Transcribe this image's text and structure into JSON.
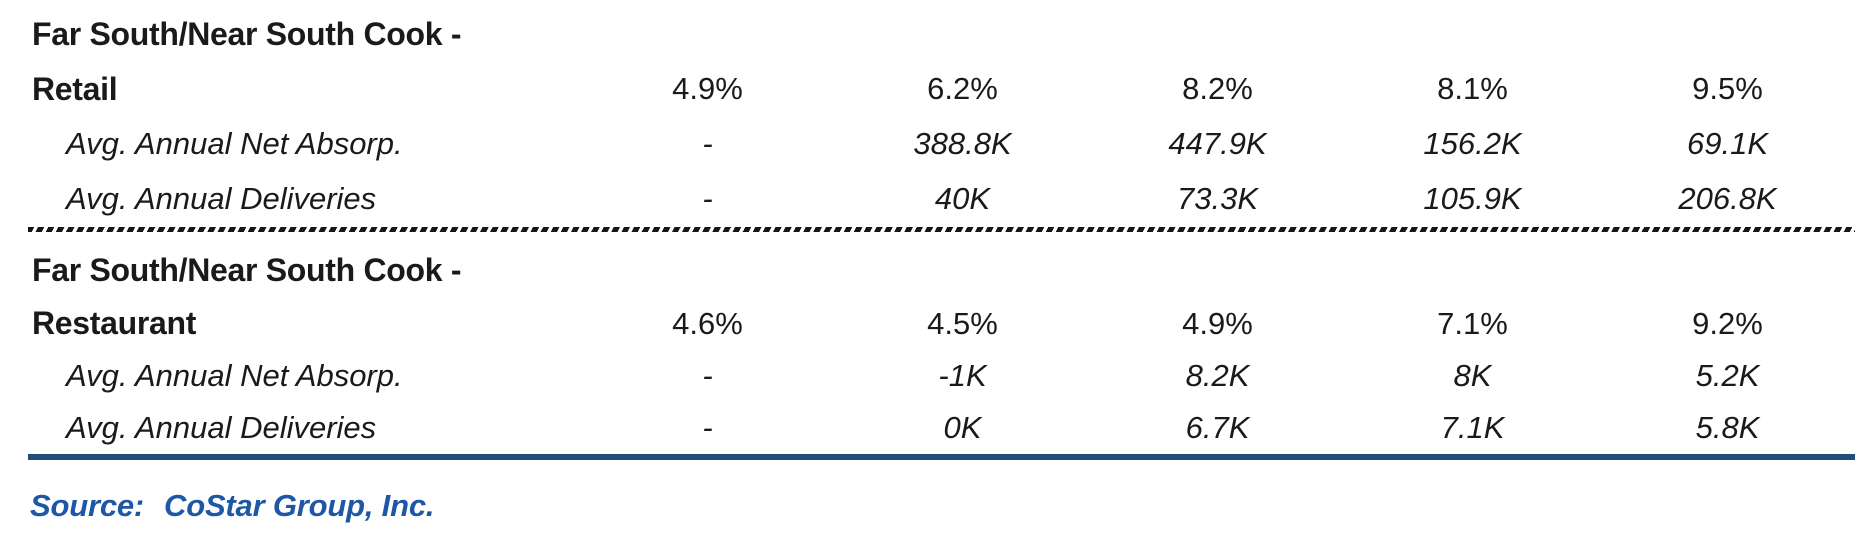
{
  "sections": [
    {
      "title_line1": "Far South/Near South Cook -",
      "title_line2": "Retail",
      "percent_values": [
        "4.9%",
        "6.2%",
        "8.2%",
        "8.1%",
        "9.5%"
      ],
      "rows": [
        {
          "label": "Avg. Annual Net Absorp.",
          "values": [
            "-",
            "388.8K",
            "447.9K",
            "156.2K",
            "69.1K"
          ]
        },
        {
          "label": "Avg. Annual Deliveries",
          "values": [
            "-",
            "40K",
            "73.3K",
            "105.9K",
            "206.8K"
          ]
        }
      ]
    },
    {
      "title_line1": "Far South/Near South Cook -",
      "title_line2": "Restaurant",
      "percent_values": [
        "4.6%",
        "4.5%",
        "4.9%",
        "7.1%",
        "9.2%"
      ],
      "rows": [
        {
          "label": "Avg. Annual Net Absorp.",
          "values": [
            "-",
            "-1K",
            "8.2K",
            "8K",
            "5.2K"
          ]
        },
        {
          "label": "Avg. Annual Deliveries",
          "values": [
            "-",
            "0K",
            "6.7K",
            "7.1K",
            "5.8K"
          ]
        }
      ]
    }
  ],
  "source": {
    "label": "Source:",
    "value": "CoStar Group, Inc."
  },
  "colors": {
    "text": "#1A1A1A",
    "rule_blue": "#1F4E79",
    "source_blue": "#1D57A5",
    "divider_black": "#161616"
  }
}
